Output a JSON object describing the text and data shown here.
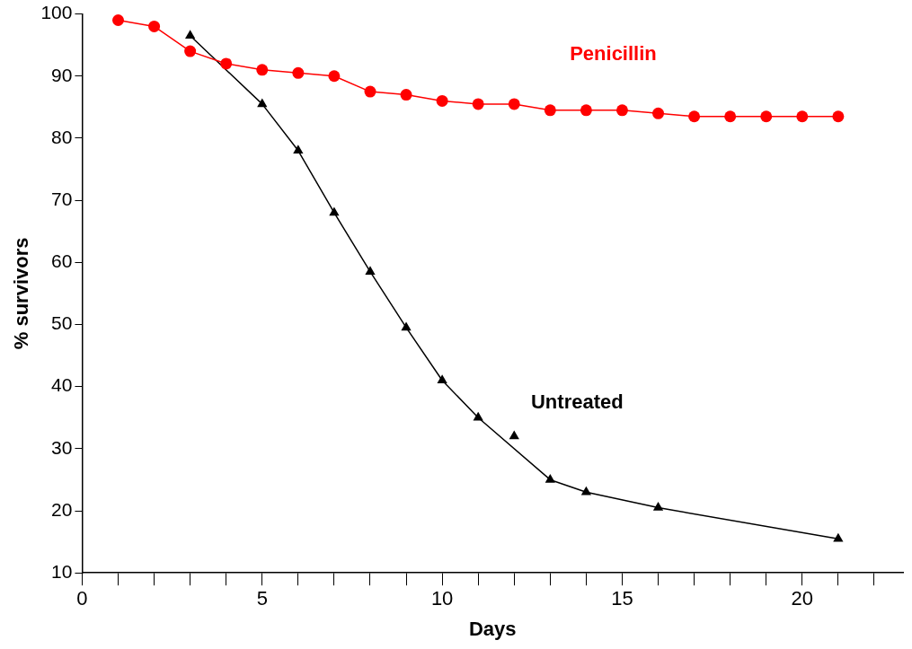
{
  "chart_data": {
    "type": "line",
    "xlabel": "Days",
    "ylabel": "% survivors",
    "xlim": [
      0,
      22.8
    ],
    "ylim": [
      10,
      100
    ],
    "xticks": [
      0,
      {
        "value": 1,
        "label": null
      },
      {
        "value": 2,
        "label": null
      },
      {
        "value": 3,
        "label": null
      },
      {
        "value": 4,
        "label": null
      },
      5,
      {
        "value": 6,
        "label": null
      },
      {
        "value": 7,
        "label": null
      },
      {
        "value": 8,
        "label": null
      },
      {
        "value": 9,
        "label": null
      },
      10,
      {
        "value": 11,
        "label": null
      },
      {
        "value": 12,
        "label": null
      },
      {
        "value": 13,
        "label": null
      },
      {
        "value": 14,
        "label": null
      },
      15,
      {
        "value": 16,
        "label": null
      },
      {
        "value": 17,
        "label": null
      },
      {
        "value": 18,
        "label": null
      },
      {
        "value": 19,
        "label": null
      },
      20,
      {
        "value": 21,
        "label": null
      },
      {
        "value": 22,
        "label": null
      }
    ],
    "yticks": [
      10,
      20,
      30,
      40,
      50,
      60,
      70,
      80,
      90,
      100
    ],
    "grid": false,
    "legend": false,
    "line_style": "solid",
    "series": [
      {
        "name": "Penicillin",
        "color": "#ff0000",
        "type": "line",
        "marker": "circle",
        "x": [
          1,
          2,
          3,
          4,
          5,
          6,
          7,
          8,
          9,
          10,
          11,
          12,
          13,
          14,
          15,
          16,
          17,
          18,
          19,
          20,
          21
        ],
        "values": [
          99,
          98,
          94,
          92,
          91,
          90.5,
          90,
          87.5,
          87,
          86,
          85.5,
          85.5,
          84.5,
          84.5,
          84.5,
          84,
          83.5,
          83.5,
          83.5,
          83.5,
          83.5
        ]
      },
      {
        "name": "Untreated",
        "color": "#000000",
        "type": "line",
        "marker": "triangle",
        "x": [
          3,
          5,
          6,
          7,
          8,
          9,
          10,
          11,
          13,
          14,
          16,
          21
        ],
        "values": [
          96.5,
          85.5,
          78,
          68,
          58.5,
          49.5,
          41,
          35,
          25,
          23,
          20.5,
          15.5
        ]
      },
      {
        "color": "#000000",
        "type": "scatter",
        "marker": "triangle",
        "x": [
          12
        ],
        "values": [
          32
        ]
      }
    ]
  }
}
